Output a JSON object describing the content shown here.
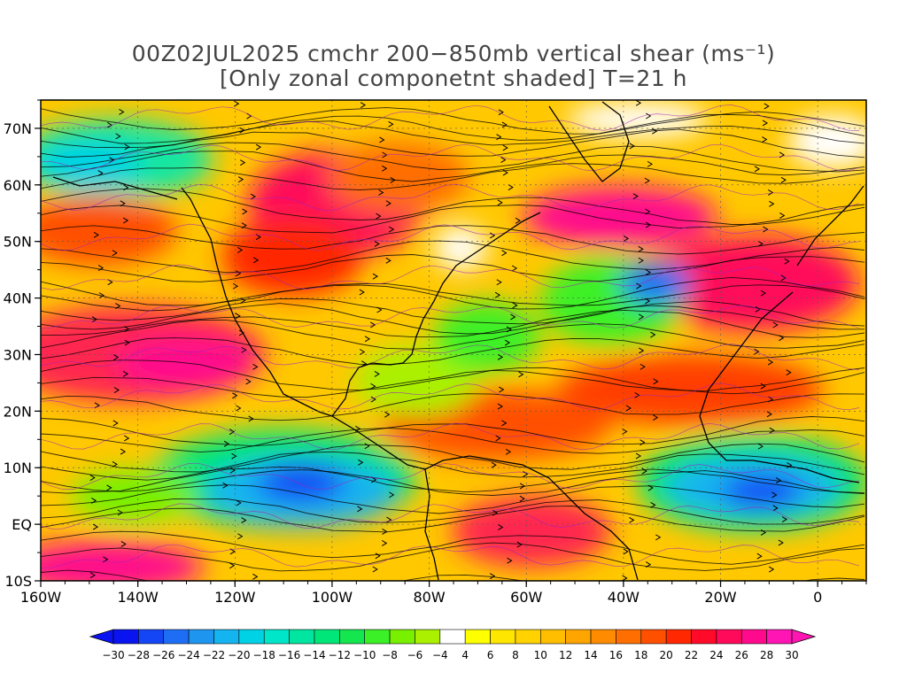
{
  "title": {
    "line1": "00Z02JUL2025 cmchr 200−850mb vertical shear (ms⁻¹)",
    "line2": "[Only zonal componetnt shaded] T=21 h"
  },
  "map": {
    "type": "heatmap",
    "x_axis": {
      "min": -160,
      "max": 10,
      "ticks": [
        {
          "value": -160,
          "label": "160W"
        },
        {
          "value": -140,
          "label": "140W"
        },
        {
          "value": -120,
          "label": "120W"
        },
        {
          "value": -100,
          "label": "100W"
        },
        {
          "value": -80,
          "label": "80W"
        },
        {
          "value": -60,
          "label": "60W"
        },
        {
          "value": -40,
          "label": "40W"
        },
        {
          "value": -20,
          "label": "20W"
        },
        {
          "value": 0,
          "label": "0"
        }
      ]
    },
    "y_axis": {
      "min": -10,
      "max": 75,
      "ticks": [
        {
          "value": 70,
          "label": "70N"
        },
        {
          "value": 60,
          "label": "60N"
        },
        {
          "value": 50,
          "label": "50N"
        },
        {
          "value": 40,
          "label": "40N"
        },
        {
          "value": 30,
          "label": "30N"
        },
        {
          "value": 20,
          "label": "20N"
        },
        {
          "value": 10,
          "label": "10N"
        },
        {
          "value": 0,
          "label": "EQ"
        },
        {
          "value": -10,
          "label": "10S"
        }
      ]
    },
    "features": [
      "streamlines",
      "coastlines",
      "state-borders",
      "lat-lon-gridlines",
      "magenta-contours"
    ]
  },
  "colorbar": {
    "labels": [
      "−30",
      "−28",
      "−26",
      "−24",
      "−22",
      "−20",
      "−18",
      "−16",
      "−14",
      "−12",
      "−10",
      "−8",
      "−6",
      "−4",
      "4",
      "6",
      "8",
      "10",
      "12",
      "14",
      "16",
      "18",
      "20",
      "22",
      "24",
      "26",
      "28",
      "30"
    ],
    "colors": [
      "#0a14f0",
      "#1446f5",
      "#1e6ef5",
      "#1e96f0",
      "#14b4f0",
      "#00d2e6",
      "#00e6c8",
      "#00e6a0",
      "#00e678",
      "#14e650",
      "#3cf028",
      "#78f000",
      "#aaf000",
      "#ffffff",
      "#ffff00",
      "#ffe600",
      "#ffd200",
      "#ffbe00",
      "#ffa500",
      "#ff8c00",
      "#ff6e00",
      "#ff5000",
      "#ff2800",
      "#ff0a28",
      "#ff0a5a",
      "#ff0a8c",
      "#ff14b4"
    ]
  }
}
